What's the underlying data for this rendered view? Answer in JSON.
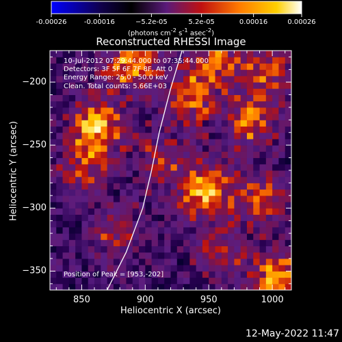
{
  "colorbar": {
    "tick_labels": [
      "-0.00026",
      "-0.00016",
      "−5.2e-05",
      "5.2e-05",
      "0.00016",
      "0.00026"
    ],
    "tick_values": [
      -0.00026,
      -0.00016,
      -5.2e-05,
      5.2e-05,
      0.00016,
      0.00026
    ],
    "range": [
      -0.00026,
      0.00026
    ],
    "unit_html": "(photons cm<sup>-2</sup> s<sup>-1</sup> asec<sup>-2</sup>)",
    "colormap": [
      "#0000ff",
      "#000000",
      "#5a1a7a",
      "#c01010",
      "#ff7a00",
      "#ffd000",
      "#ffffff"
    ]
  },
  "chart_data": {
    "type": "heatmap",
    "title": "Reconstructed RHESSI Image",
    "xlabel": "Heliocentric X (arcsec)",
    "ylabel": "Heliocentric Y (arcsec)",
    "xlim": [
      825,
      1015
    ],
    "ylim": [
      -365,
      -175
    ],
    "x_ticks": [
      850,
      900,
      950,
      1000
    ],
    "y_ticks": [
      -200,
      -250,
      -300,
      -350
    ],
    "grid": false,
    "hot_spots_arcsec": [
      [
        888,
        -185,
        1.0
      ],
      [
        952,
        -183,
        0.8
      ],
      [
        995,
        -189,
        0.7
      ],
      [
        862,
        -234,
        1.0
      ],
      [
        935,
        -215,
        0.7
      ],
      [
        984,
        -231,
        0.8
      ],
      [
        852,
        -265,
        0.6
      ],
      [
        946,
        -285,
        1.0
      ],
      [
        990,
        -292,
        0.7
      ],
      [
        915,
        -260,
        0.5
      ],
      [
        877,
        -321,
        0.6
      ],
      [
        1003,
        -356,
        1.0
      ],
      [
        958,
        -334,
        0.5
      ]
    ],
    "peak_position_arcsec": [
      953,
      -202
    ],
    "limb_curve_arcsec": [
      [
        870,
        -365
      ],
      [
        885,
        -335
      ],
      [
        898,
        -300
      ],
      [
        905,
        -270
      ],
      [
        911,
        -240
      ],
      [
        920,
        -205
      ],
      [
        929,
        -175
      ]
    ]
  },
  "annotations": {
    "line1": "10-Jul-2012 07:29:44.000 to 07:35:44.000",
    "line2": "Detectors: 3F 5F 6F 7F 8F, Att 0",
    "line3": "Energy Range: 25.0 - 50.0 keV",
    "line4": "Clean.  Total counts: 5.66E+03",
    "peak": "Position of Peak = [953,-202]"
  },
  "footer": {
    "date": "12-May-2022 11:47"
  }
}
